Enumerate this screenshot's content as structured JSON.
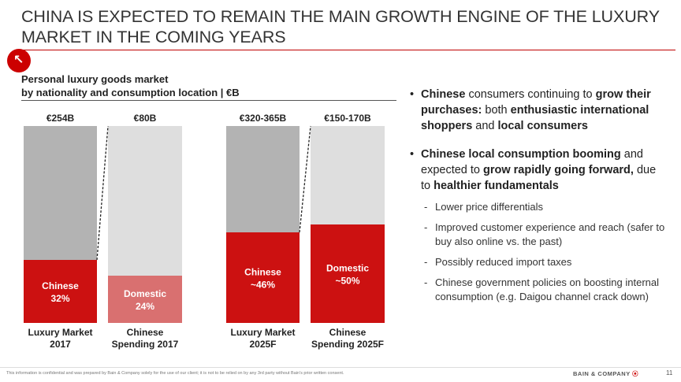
{
  "header": {
    "title": "CHINA IS EXPECTED TO REMAIN THE MAIN GROWTH ENGINE OF THE LUXURY MARKET IN THE COMING YEARS",
    "logo_glyph": "↖"
  },
  "chart_data": {
    "type": "bar",
    "title_line1": "Personal luxury goods market",
    "title_line2": "by nationality and consumption location | €B",
    "bars": [
      {
        "category_line1": "Luxury Market",
        "category_line2": "2017",
        "total_label": "€254B",
        "segment_label_line1": "Chinese",
        "segment_label_line2": "32%",
        "segment_share": 0.32,
        "segment_color": "#cc1111",
        "rest_color": "#b3b3b3"
      },
      {
        "category_line1": "Chinese",
        "category_line2": "Spending 2017",
        "total_label": "€80B",
        "segment_label_line1": "Domestic",
        "segment_label_line2": "24%",
        "segment_share": 0.24,
        "segment_color": "#d97070",
        "rest_color": "#dedede"
      },
      {
        "category_line1": "Luxury Market",
        "category_line2": "2025F",
        "total_label": "€320-365B",
        "segment_label_line1": "Chinese",
        "segment_label_line2": "~46%",
        "segment_share": 0.46,
        "segment_color": "#cc1111",
        "rest_color": "#b3b3b3"
      },
      {
        "category_line1": "Chinese",
        "category_line2": "Spending 2025F",
        "total_label": "€150-170B",
        "segment_label_line1": "Domestic",
        "segment_label_line2": "~50%",
        "segment_share": 0.5,
        "segment_color": "#cc1111",
        "rest_color": "#dedede"
      }
    ]
  },
  "bullets": {
    "b1": {
      "p1": "Chinese",
      "p2": " consumers continuing to ",
      "p3": "grow their purchases:",
      "p4": " both ",
      "p5": "enthusiastic international shoppers",
      "p6": " and ",
      "p7": "local consumers"
    },
    "b2": {
      "p1": "Chinese local consumption booming",
      "p2": " and expected to ",
      "p3": "grow rapidly going forward,",
      "p4": " due to ",
      "p5": "healthier fundamentals"
    },
    "subs": [
      "Lower price differentials",
      "Improved customer experience and reach (safer to buy also online vs. the past)",
      "Possibly reduced import taxes",
      "Chinese government policies on boosting internal consumption (e.g. Daigou channel crack down)"
    ]
  },
  "footer": {
    "disclaimer": "This information is confidential and was prepared by Bain & Company solely for the use of our client; it is not to be relied on by any 3rd party without Bain's prior written consent.",
    "brand": "BAIN & COMPANY",
    "brand_mark": "⦿",
    "page_number": "11"
  }
}
